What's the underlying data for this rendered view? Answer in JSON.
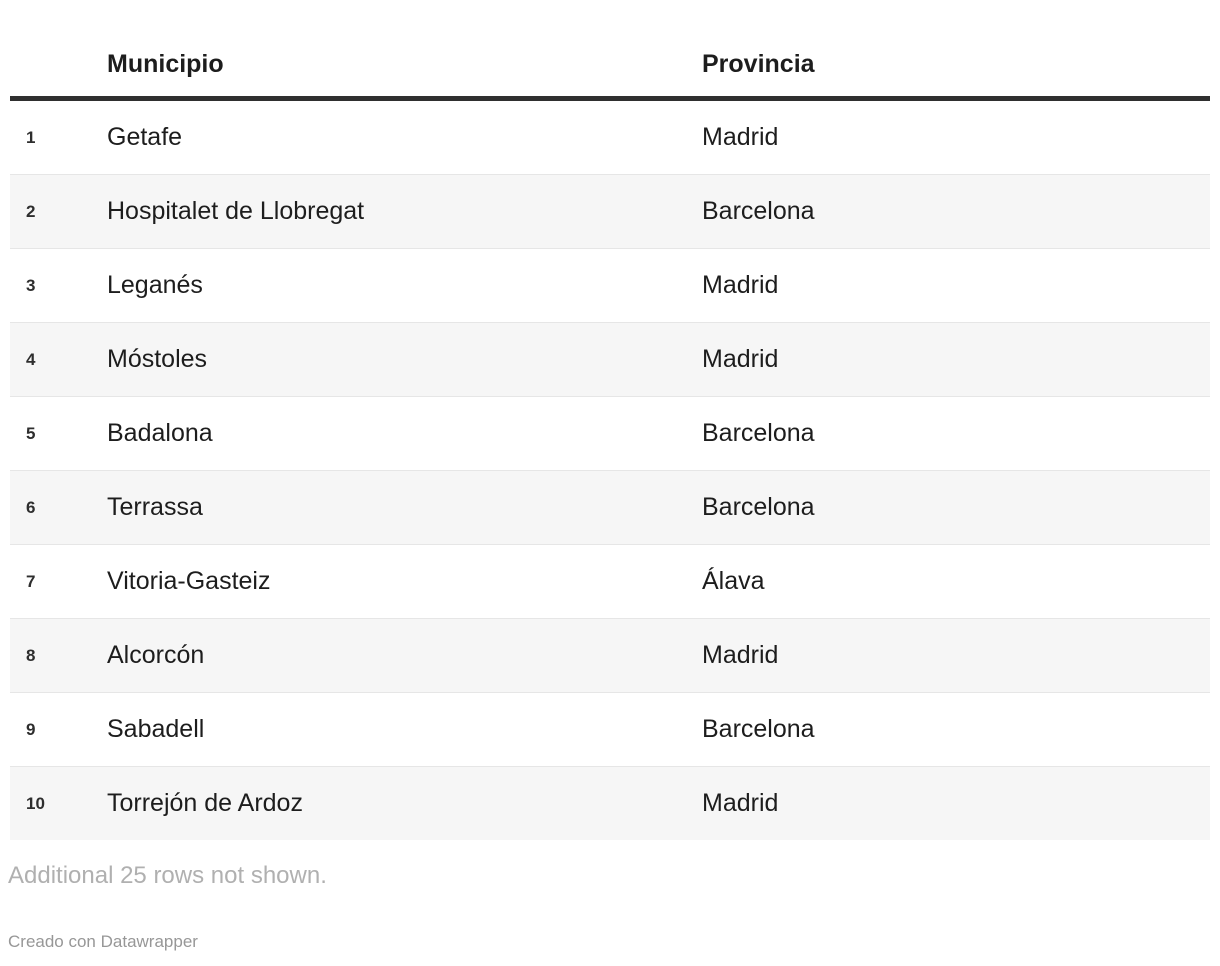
{
  "chart_data": {
    "type": "table",
    "title": "",
    "columns": [
      "",
      "Municipio",
      "Provincia"
    ],
    "rows": [
      {
        "num": "1",
        "municipio": "Getafe",
        "provincia": "Madrid"
      },
      {
        "num": "2",
        "municipio": "Hospitalet de Llobregat",
        "provincia": "Barcelona"
      },
      {
        "num": "3",
        "municipio": "Leganés",
        "provincia": "Madrid"
      },
      {
        "num": "4",
        "municipio": "Móstoles",
        "provincia": "Madrid"
      },
      {
        "num": "5",
        "municipio": "Badalona",
        "provincia": "Barcelona"
      },
      {
        "num": "6",
        "municipio": "Terrassa",
        "provincia": "Barcelona"
      },
      {
        "num": "7",
        "municipio": "Vitoria-Gasteiz",
        "provincia": "Álava"
      },
      {
        "num": "8",
        "municipio": "Alcorcón",
        "provincia": "Madrid"
      },
      {
        "num": "9",
        "municipio": "Sabadell",
        "provincia": "Barcelona"
      },
      {
        "num": "10",
        "municipio": "Torrejón de Ardoz",
        "provincia": "Madrid"
      }
    ],
    "layout": {
      "zebra_striping": true,
      "header_rule": true
    }
  },
  "footer": {
    "footnote": "Additional 25 rows not shown.",
    "attribution": "Creado con Datawrapper"
  },
  "colors": {
    "text": "#1d1d1d",
    "header_rule": "#2f2f2f",
    "stripe": "#f6f6f6",
    "row_separator": "#e6e6e6",
    "footnote_text": "#b0b0b0",
    "attribution_text": "#979797",
    "background": "#ffffff"
  }
}
